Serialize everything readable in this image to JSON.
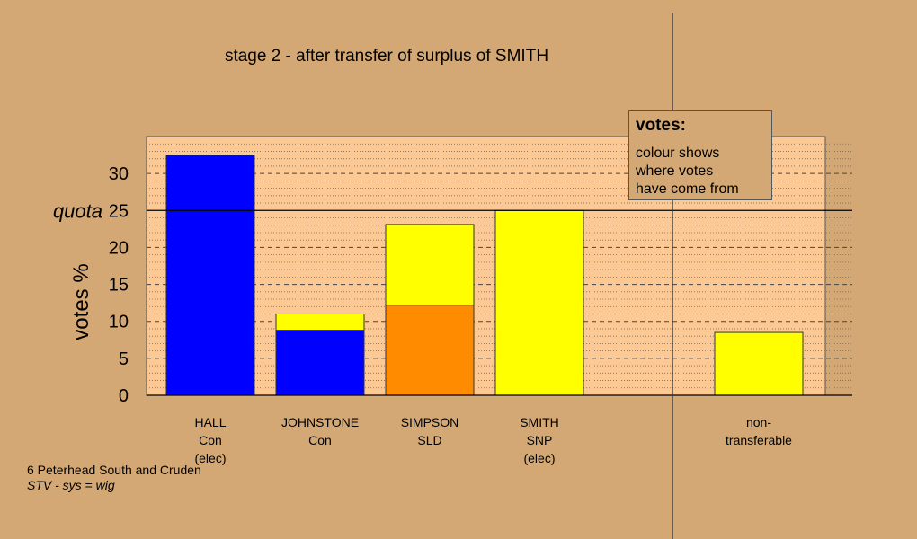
{
  "chart_data": {
    "type": "bar",
    "title": "stage 2 - after transfer of surplus of SMITH",
    "ylabel": "votes %",
    "ylim": [
      0,
      35
    ],
    "yticks": [
      0,
      5,
      10,
      15,
      20,
      25,
      30
    ],
    "quota_label": "quota",
    "quota": 25,
    "grid": true,
    "categories": [
      [
        "HALL",
        "Con",
        "(elec)"
      ],
      [
        "JOHNSTONE",
        "Con"
      ],
      [
        "SIMPSON",
        "SLD"
      ],
      [
        "SMITH",
        "SNP",
        "(elec)"
      ],
      [
        "non-",
        "transferable"
      ]
    ],
    "bars": [
      {
        "segments": [
          {
            "value": 32.5,
            "color": "#0000ff"
          }
        ]
      },
      {
        "segments": [
          {
            "value": 8.8,
            "color": "#0000ff"
          },
          {
            "value": 2.2,
            "color": "#ffff00"
          }
        ]
      },
      {
        "segments": [
          {
            "value": 12.2,
            "color": "#ff8c00"
          },
          {
            "value": 10.9,
            "color": "#ffff00"
          }
        ]
      },
      {
        "segments": [
          {
            "value": 25.0,
            "color": "#ffff00"
          }
        ]
      },
      {
        "segments": [
          {
            "value": 8.5,
            "color": "#ffff00"
          }
        ]
      }
    ],
    "legend": {
      "heading": "votes:",
      "lines": [
        "colour shows",
        "where votes",
        "have come from"
      ],
      "placement": "top-right"
    }
  },
  "footer": {
    "constituency": "6 Peterhead South and Cruden",
    "system": "STV - sys = wig"
  }
}
